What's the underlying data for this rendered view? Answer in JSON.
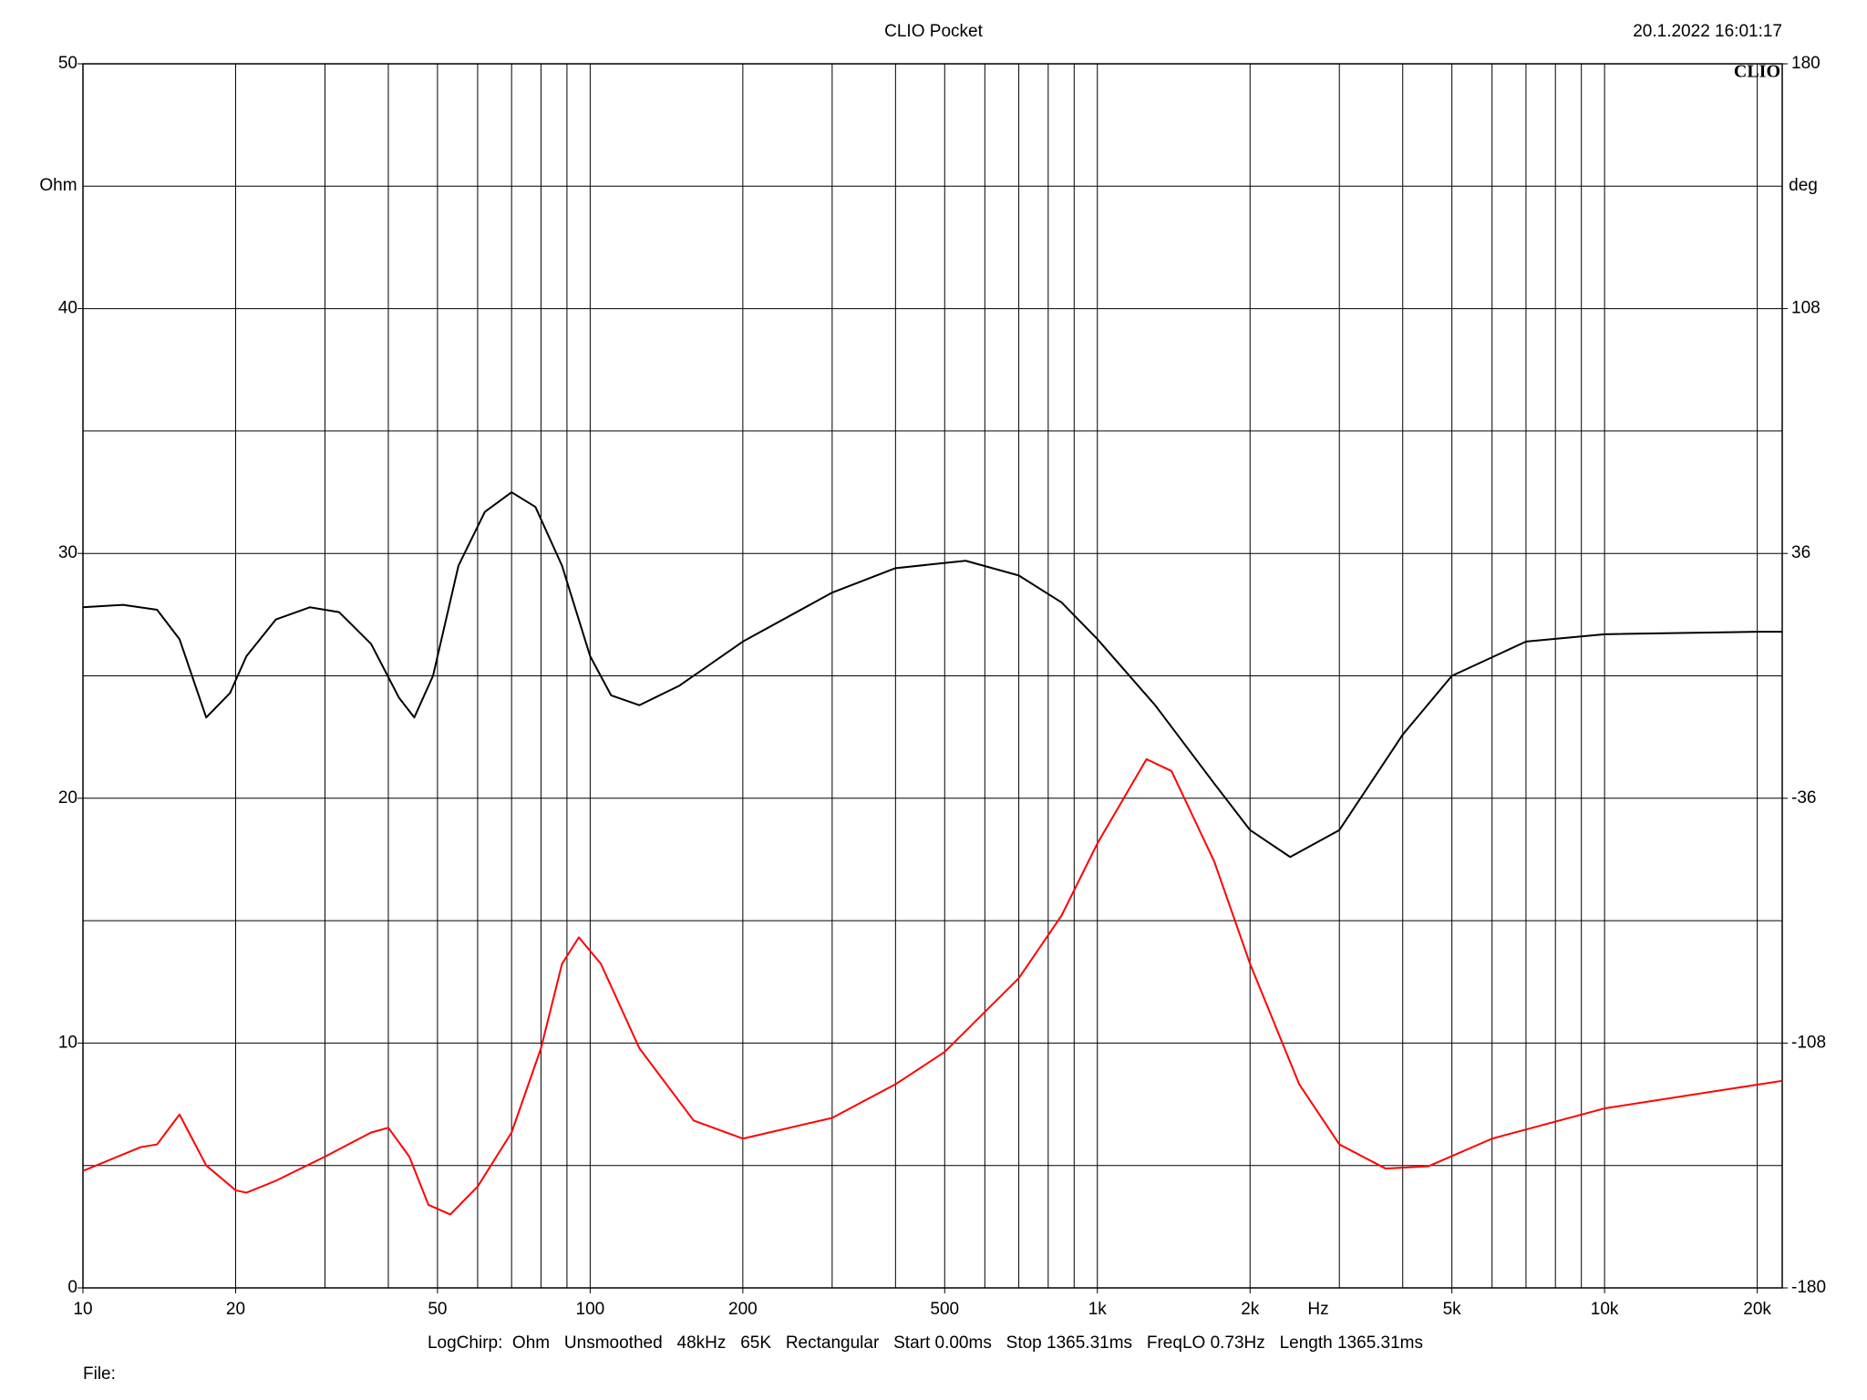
{
  "chart_data": {
    "type": "line",
    "title": "CLIO Pocket",
    "timestamp": "20.1.2022 16:01:17",
    "logo": "CLIO",
    "y_unit": "Ohm",
    "y2_unit": "deg",
    "x_unit": "Hz",
    "footer": "LogChirp:  Ohm   Unsmoothed   48kHz   65K   Rectangular   Start 0.00ms   Stop 1365.31ms   FreqLO 0.73Hz   Length 1365.31ms",
    "file_label": "File:",
    "xlog": true,
    "grid": true,
    "xlim": [
      10,
      22400
    ],
    "ylim": [
      0,
      50
    ],
    "y2lim": [
      -180,
      180
    ],
    "xticks": [
      10,
      20,
      50,
      100,
      200,
      500,
      {
        "value": 1000,
        "label": "1k"
      },
      {
        "value": 2000,
        "label": "2k"
      },
      {
        "value": 5000,
        "label": "5k"
      },
      {
        "value": 10000,
        "label": "10k"
      },
      {
        "value": 20000,
        "label": "20k"
      }
    ],
    "xgrid": [
      10,
      20,
      30,
      40,
      50,
      60,
      70,
      80,
      90,
      100,
      200,
      300,
      400,
      500,
      600,
      700,
      800,
      900,
      1000,
      2000,
      3000,
      4000,
      5000,
      6000,
      7000,
      8000,
      9000,
      10000,
      20000
    ],
    "yticks": [
      0,
      10,
      20,
      30,
      40,
      50
    ],
    "ygrid": [
      0,
      5,
      10,
      15,
      20,
      25,
      30,
      35,
      40,
      45,
      50
    ],
    "y2ticks": [
      -180,
      -108,
      -36,
      36,
      108,
      180
    ],
    "series": [
      {
        "name": "Ohm",
        "color": "#000000",
        "x": [
          10,
          12,
          14,
          15.5,
          17.5,
          19.5,
          21,
          24,
          28,
          32,
          37,
          42,
          45,
          49,
          55,
          62,
          70,
          78,
          88,
          100,
          110,
          125,
          150,
          200,
          300,
          400,
          550,
          700,
          850,
          1000,
          1300,
          1700,
          2000,
          2400,
          3000,
          4000,
          5000,
          7000,
          10000,
          20000,
          22400
        ],
        "values": [
          27.8,
          27.9,
          27.7,
          26.5,
          23.3,
          24.3,
          25.8,
          27.3,
          27.8,
          27.6,
          26.3,
          24.1,
          23.3,
          25.0,
          29.5,
          31.7,
          32.5,
          31.9,
          29.5,
          25.8,
          24.2,
          23.8,
          24.6,
          26.4,
          28.4,
          29.4,
          29.7,
          29.1,
          28.0,
          26.5,
          23.8,
          20.6,
          18.7,
          17.6,
          18.7,
          22.6,
          25.0,
          26.4,
          26.7,
          26.8,
          26.8
        ]
      },
      {
        "name": "deg",
        "color": "#ff0000",
        "axis": "y2",
        "x": [
          10,
          13,
          14,
          15.5,
          17.5,
          20,
          21,
          24,
          30,
          37,
          40,
          44,
          48,
          53,
          60,
          70,
          80,
          88,
          95,
          105,
          125,
          160,
          200,
          300,
          400,
          500,
          700,
          850,
          1000,
          1250,
          1400,
          1700,
          2000,
          2500,
          3000,
          3700,
          4500,
          6000,
          10000,
          22400
        ],
        "values": [
          -145.6,
          -138.6,
          -137.8,
          -129,
          -144,
          -151.3,
          -152,
          -148.5,
          -141.4,
          -134.3,
          -132.9,
          -141.4,
          -155.6,
          -158.4,
          -150.2,
          -134.3,
          -109.5,
          -84.7,
          -76.9,
          -84.7,
          -109.5,
          -130.8,
          -136.1,
          -130,
          -120.1,
          -110.6,
          -88.9,
          -70.5,
          -49.3,
          -24.5,
          -28,
          -54.6,
          -84.7,
          -120.1,
          -137.8,
          -144.9,
          -144.2,
          -136.1,
          -127.2,
          -119.1
        ]
      }
    ]
  }
}
